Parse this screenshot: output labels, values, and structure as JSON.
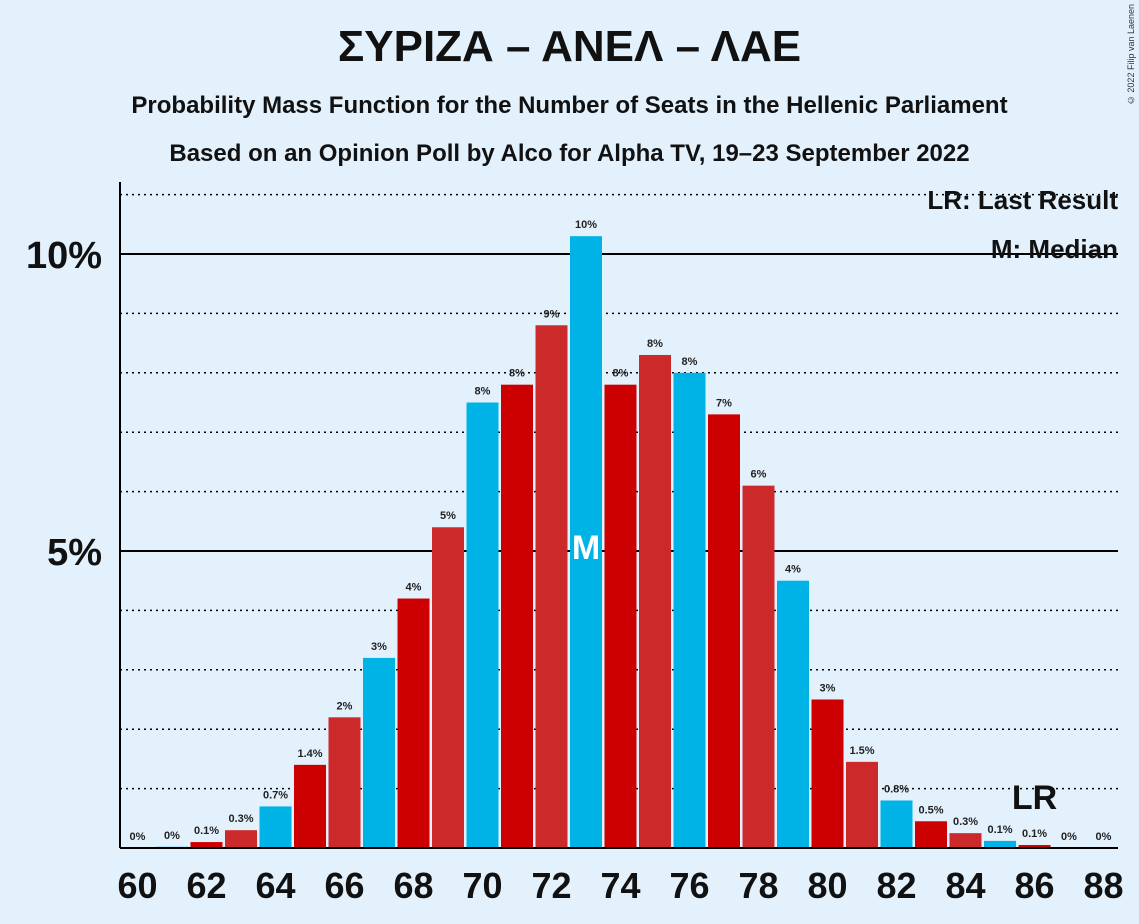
{
  "title": "ΣΥΡΙΖΑ – ΑΝΕΛ – ΛΑΕ",
  "subtitle1": "Probability Mass Function for the Number of Seats in the Hellenic Parliament",
  "subtitle2": "Based on an Opinion Poll by Alco for Alpha TV, 19–23 September 2022",
  "copyright": "© 2022 Filip van Laenen",
  "legend": {
    "last_result": "LR: Last Result",
    "median": "M: Median"
  },
  "colors": {
    "blue": "#00b3e6",
    "red": "#cc0000",
    "red_alt": "#cc2a2a",
    "background": "#e3f1fd"
  },
  "chart_data": {
    "type": "bar",
    "x": [
      60,
      61,
      62,
      63,
      64,
      65,
      66,
      67,
      68,
      69,
      70,
      71,
      72,
      73,
      74,
      75,
      76,
      77,
      78,
      79,
      80,
      81,
      82,
      83,
      84,
      85,
      86,
      87,
      88
    ],
    "values": [
      0,
      0.02,
      0.1,
      0.3,
      0.7,
      1.4,
      2.2,
      3.2,
      4.2,
      5.4,
      7.5,
      7.8,
      8.8,
      10.3,
      7.8,
      8.3,
      8.0,
      7.3,
      6.1,
      4.5,
      2.5,
      1.45,
      0.8,
      0.45,
      0.25,
      0.12,
      0.05,
      0,
      0
    ],
    "labels": [
      "0%",
      "0%",
      "0.1%",
      "0.3%",
      "0.7%",
      "1.4%",
      "2%",
      "3%",
      "4%",
      "5%",
      "8%",
      "8%",
      "9%",
      "10%",
      "8%",
      "8%",
      "8%",
      "7%",
      "6%",
      "4%",
      "3%",
      "1.5%",
      "0.8%",
      "0.5%",
      "0.3%",
      "0.1%",
      "0.1%",
      "0%",
      "0%"
    ],
    "bar_colors": [
      "blue",
      "blue",
      "red",
      "red_alt",
      "blue",
      "red",
      "red_alt",
      "blue",
      "red",
      "red_alt",
      "blue",
      "red",
      "red_alt",
      "blue",
      "red",
      "red_alt",
      "blue",
      "red",
      "red_alt",
      "blue",
      "red",
      "red_alt",
      "blue",
      "red",
      "red_alt",
      "blue",
      "red",
      "red_alt",
      "blue"
    ],
    "xticks": [
      60,
      62,
      64,
      66,
      68,
      70,
      72,
      74,
      76,
      78,
      80,
      82,
      84,
      86,
      88
    ],
    "yticks": [
      {
        "value": 5,
        "label": "5%"
      },
      {
        "value": 10,
        "label": "10%"
      }
    ],
    "ylim": [
      0,
      11.2
    ],
    "median": 73,
    "median_label": "M",
    "last_result": 86,
    "last_result_label": "LR"
  }
}
